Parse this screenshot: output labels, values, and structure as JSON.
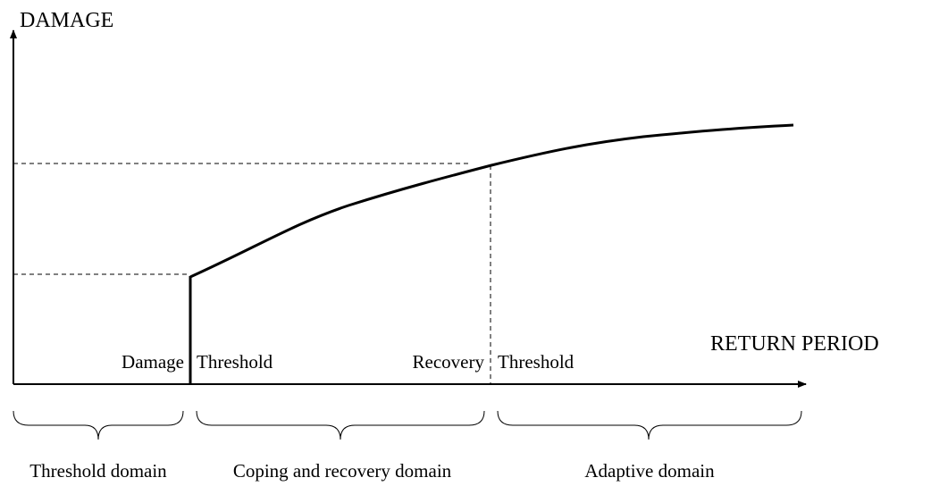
{
  "axes": {
    "y_label": "DAMAGE",
    "x_label": "RETURN PERIOD"
  },
  "points": [
    {
      "label_left": "Damage",
      "label_right": "Threshold"
    },
    {
      "label_left": "Recovery",
      "label_right": "Threshold"
    }
  ],
  "domains": [
    "Threshold domain",
    "Coping and recovery domain",
    "Adaptive domain"
  ]
}
